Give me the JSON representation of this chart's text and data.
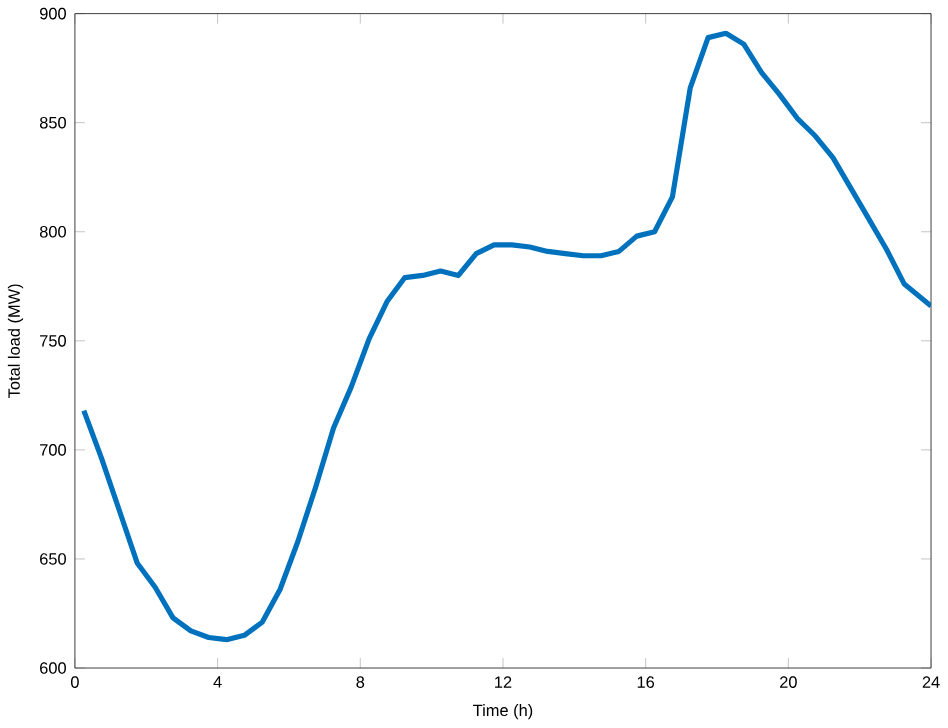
{
  "chart_data": {
    "type": "line",
    "xlabel": "Time (h)",
    "ylabel": "Total load (MW)",
    "xlim": [
      0,
      24
    ],
    "xticks": [
      0,
      4,
      8,
      12,
      16,
      20,
      24
    ],
    "ylim": [
      600,
      900
    ],
    "yticks": [
      600,
      650,
      700,
      750,
      800,
      850,
      900
    ],
    "grid": false,
    "series": [
      {
        "color": "#0072bd",
        "x": [
          0.25,
          0.75,
          1.25,
          1.75,
          2.25,
          2.75,
          3.25,
          3.75,
          4.25,
          4.75,
          5.25,
          5.75,
          6.25,
          6.75,
          7.25,
          7.75,
          8.25,
          8.75,
          9.25,
          9.75,
          10.25,
          10.75,
          11.25,
          11.75,
          12.25,
          12.75,
          13.25,
          13.75,
          14.25,
          14.75,
          15.25,
          15.75,
          16.25,
          16.75,
          17.25,
          17.75,
          18.25,
          18.75,
          19.25,
          19.75,
          20.25,
          20.75,
          21.25,
          21.75,
          22.25,
          22.75,
          23.25,
          24
        ],
        "values": [
          718,
          696,
          672,
          648,
          637,
          623,
          617,
          614,
          613,
          615,
          621,
          636,
          658,
          683,
          710,
          729,
          751,
          768,
          779,
          780,
          782,
          780,
          790,
          794,
          794,
          793,
          791,
          790,
          789,
          789,
          791,
          798,
          800,
          816,
          866,
          889,
          891,
          886,
          873,
          863,
          852,
          844,
          834,
          820,
          806,
          792,
          776,
          766
        ]
      }
    ]
  }
}
